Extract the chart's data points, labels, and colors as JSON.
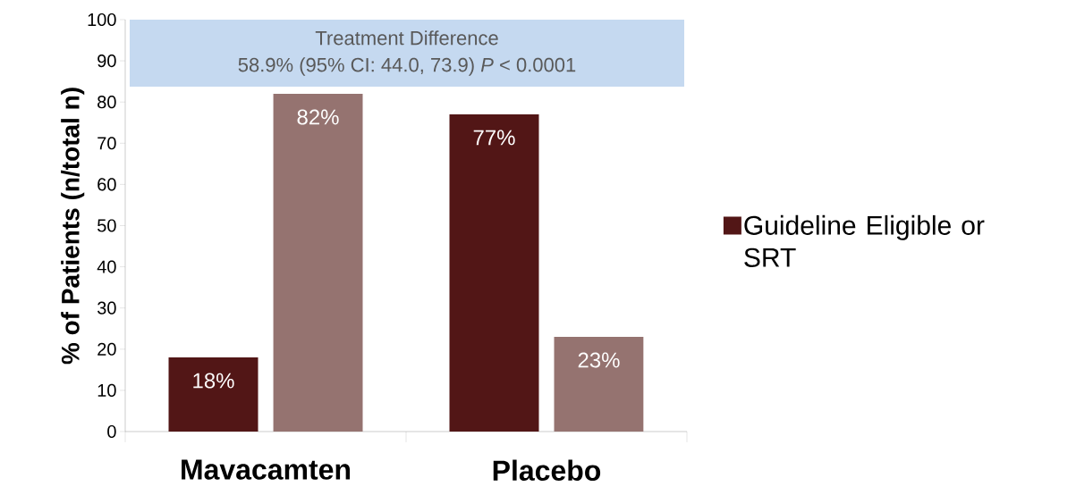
{
  "chart_data": {
    "type": "bar",
    "ylabel": "% of Patients (n/total n)",
    "categories": [
      "Mavacamten",
      "Placebo"
    ],
    "series": [
      {
        "name": "Guideline Eligible or SRT",
        "color": "#521616",
        "values": [
          18,
          77
        ],
        "value_labels": [
          "18%",
          "77%"
        ]
      },
      {
        "color": "#957370",
        "values": [
          82,
          23
        ],
        "value_labels": [
          "82%",
          "23%"
        ]
      }
    ],
    "ylim": [
      0,
      100
    ],
    "yticks": [
      0,
      10,
      20,
      30,
      40,
      50,
      60,
      70,
      80,
      90,
      100
    ],
    "annotations": [
      "Treatment Difference",
      "58.9% (95% CI: 44.0, 73.9) *P* < 0.0001"
    ],
    "legend": "right",
    "grid": false
  }
}
